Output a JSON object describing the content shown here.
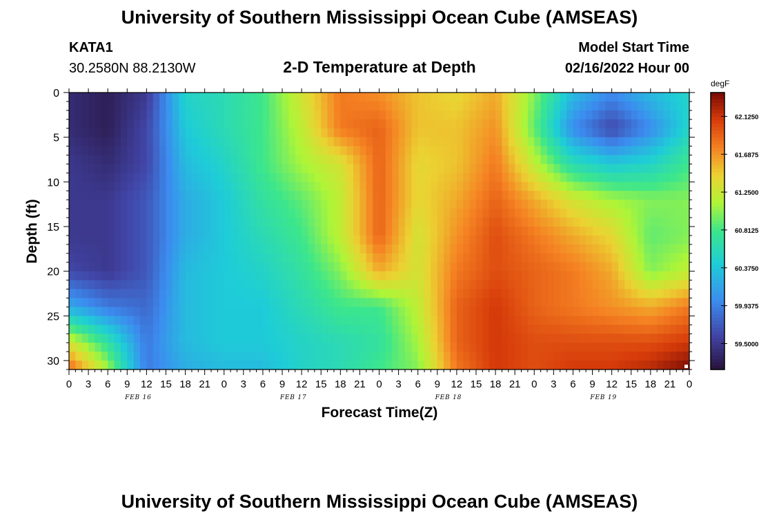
{
  "header": {
    "title": "University of Southern Mississippi Ocean Cube (AMSEAS)",
    "station": "KATA1",
    "coords": "30.2580N  88.2130W",
    "subtitle": "2-D Temperature at Depth",
    "model_label": "Model Start Time",
    "model_time": "02/16/2022 Hour 00",
    "bottom_title": "University of Southern Mississippi Ocean Cube (AMSEAS)"
  },
  "chart_data": {
    "type": "heatmap",
    "xlabel": "Forecast Time(Z)",
    "ylabel": "Depth (ft)",
    "ylim": [
      0,
      31
    ],
    "y_ticks": [
      0,
      5,
      10,
      15,
      20,
      25,
      30
    ],
    "x_ticks": [
      "0",
      "3",
      "6",
      "9",
      "12",
      "15",
      "18",
      "21",
      "0",
      "3",
      "6",
      "9",
      "12",
      "15",
      "18",
      "21",
      "0",
      "3",
      "6",
      "9",
      "12",
      "15",
      "18",
      "21",
      "0",
      "3",
      "6",
      "9",
      "12",
      "15",
      "18",
      "21",
      "0"
    ],
    "day_labels": [
      "FEB 16",
      "FEB 17",
      "FEB 18",
      "FEB 19"
    ],
    "colorbar": {
      "unit": "degF",
      "range": [
        59.2,
        62.4
      ],
      "ticks": [
        "62.1250",
        "61.6875",
        "61.2500",
        "60.8125",
        "60.3750",
        "59.9375",
        "59.5000"
      ],
      "tick_values": [
        62.125,
        61.6875,
        61.25,
        60.8125,
        60.375,
        59.9375,
        59.5
      ]
    },
    "grid": {
      "hours": [
        0,
        6,
        12,
        18,
        24,
        30,
        36,
        42,
        48,
        54,
        60,
        66,
        72,
        78,
        84,
        90,
        96
      ],
      "depths": [
        0,
        4,
        8,
        12,
        16,
        20,
        24,
        28,
        31
      ],
      "values": [
        [
          59.4,
          59.3,
          59.5,
          60.5,
          60.6,
          60.8,
          61.3,
          61.8,
          61.7,
          61.5,
          61.4,
          61.6,
          61.0,
          60.3,
          60.0,
          60.3,
          60.5
        ],
        [
          59.4,
          59.3,
          59.6,
          60.4,
          60.6,
          60.8,
          61.2,
          61.8,
          61.9,
          61.5,
          61.5,
          61.7,
          60.9,
          60.0,
          59.6,
          60.0,
          60.5
        ],
        [
          59.5,
          59.4,
          59.6,
          60.3,
          60.5,
          60.8,
          61.1,
          61.3,
          61.9,
          61.4,
          61.5,
          61.8,
          61.2,
          60.6,
          60.4,
          60.5,
          60.8
        ],
        [
          59.5,
          59.5,
          59.7,
          60.2,
          60.4,
          60.7,
          60.9,
          61.2,
          61.9,
          61.4,
          61.6,
          61.9,
          61.6,
          61.3,
          61.1,
          61.0,
          61.0
        ],
        [
          59.5,
          59.5,
          59.7,
          60.2,
          60.4,
          60.6,
          60.8,
          61.2,
          61.9,
          61.3,
          61.7,
          62.0,
          61.8,
          61.6,
          61.4,
          60.9,
          61.0
        ],
        [
          59.6,
          59.5,
          59.7,
          60.3,
          60.4,
          60.5,
          60.7,
          61.0,
          61.6,
          61.3,
          61.8,
          62.0,
          61.9,
          61.8,
          61.6,
          61.0,
          61.2
        ],
        [
          60.2,
          59.9,
          59.8,
          60.3,
          60.4,
          60.4,
          60.6,
          60.8,
          60.8,
          61.2,
          61.9,
          62.1,
          61.9,
          61.8,
          61.7,
          61.6,
          61.8
        ],
        [
          61.3,
          60.7,
          59.9,
          60.3,
          60.4,
          60.4,
          60.5,
          60.6,
          60.7,
          61.1,
          61.9,
          62.1,
          62.0,
          62.0,
          62.0,
          62.0,
          62.1
        ],
        [
          61.9,
          61.1,
          59.9,
          60.2,
          60.3,
          60.3,
          60.5,
          60.6,
          60.8,
          61.0,
          61.8,
          62.1,
          62.0,
          62.1,
          62.1,
          62.2,
          62.4
        ]
      ]
    }
  }
}
